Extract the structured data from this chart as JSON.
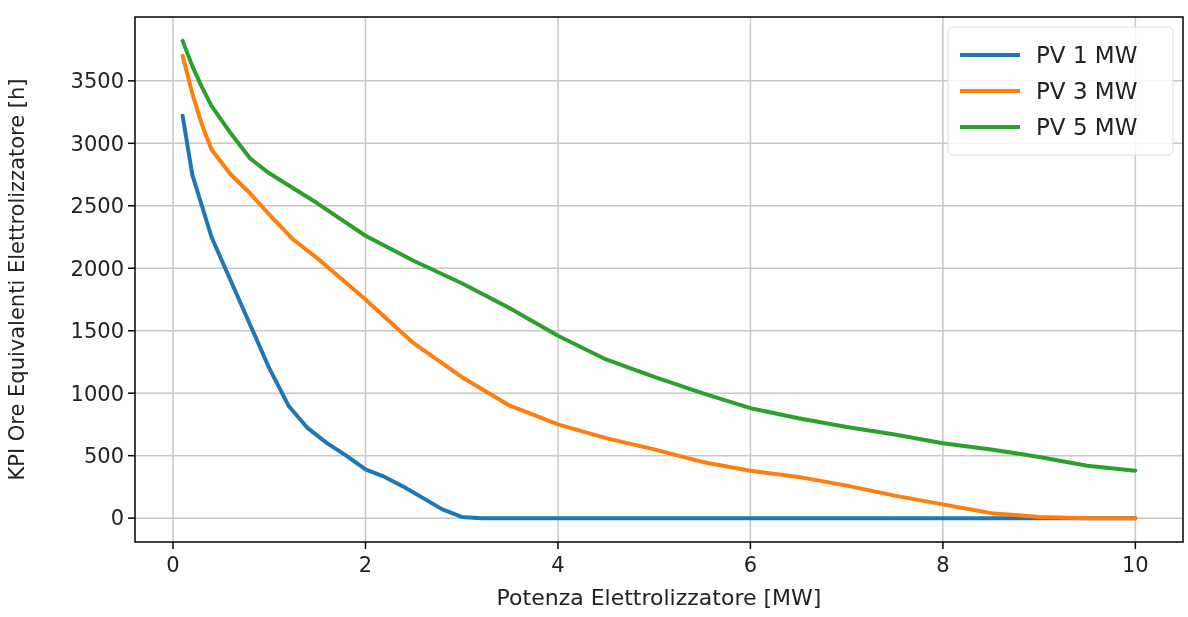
{
  "chart_data": {
    "type": "line",
    "xlabel": "Potenza Elettrolizzatore [MW]",
    "ylabel": "KPI Ore Equivalenti Elettrolizzatore [h]",
    "xlim": [
      -0.395,
      10.495
    ],
    "xticks": [
      0,
      2,
      4,
      6,
      8,
      10
    ],
    "ylim": [
      -191,
      4011
    ],
    "yticks": [
      0,
      500,
      1000,
      1500,
      2000,
      2500,
      3000,
      3500
    ],
    "grid": true,
    "legend": "top right",
    "line_style": "solid",
    "marker": "none",
    "series": [
      {
        "name": "PV 1 MW",
        "color": "#1f77b4",
        "x": [
          0.1,
          0.2,
          0.3,
          0.4,
          0.6,
          0.8,
          1.0,
          1.2,
          1.4,
          1.6,
          1.8,
          2.0,
          2.2,
          2.4,
          2.6,
          2.8,
          3.0,
          3.2,
          10
        ],
        "values": [
          3220,
          2750,
          2500,
          2250,
          1900,
          1550,
          1200,
          900,
          720,
          600,
          500,
          390,
          330,
          250,
          160,
          70,
          10,
          0,
          0
        ]
      },
      {
        "name": "PV 3 MW",
        "color": "#ff7f0e",
        "x": [
          0.1,
          0.2,
          0.3,
          0.4,
          0.6,
          0.8,
          1.0,
          1.25,
          1.5,
          2.0,
          2.5,
          3.0,
          3.5,
          4.0,
          4.5,
          5.0,
          5.5,
          6.0,
          6.5,
          7.0,
          7.5,
          8.0,
          8.5,
          9.0,
          9.5,
          10
        ],
        "values": [
          3700,
          3400,
          3150,
          2950,
          2750,
          2600,
          2430,
          2230,
          2080,
          1750,
          1400,
          1130,
          900,
          750,
          640,
          550,
          450,
          380,
          330,
          260,
          180,
          110,
          40,
          10,
          0,
          0
        ]
      },
      {
        "name": "PV 5 MW",
        "color": "#2ca02c",
        "x": [
          0.1,
          0.2,
          0.3,
          0.4,
          0.6,
          0.8,
          1.0,
          1.5,
          2.0,
          2.5,
          3.0,
          3.5,
          4.0,
          4.5,
          5.0,
          5.5,
          6.0,
          6.5,
          7.0,
          7.5,
          8.0,
          8.5,
          9.0,
          9.5,
          10
        ],
        "values": [
          3820,
          3620,
          3450,
          3300,
          3080,
          2880,
          2760,
          2520,
          2260,
          2060,
          1880,
          1680,
          1460,
          1270,
          1130,
          1000,
          880,
          800,
          730,
          670,
          600,
          550,
          490,
          420,
          380
        ]
      }
    ]
  }
}
